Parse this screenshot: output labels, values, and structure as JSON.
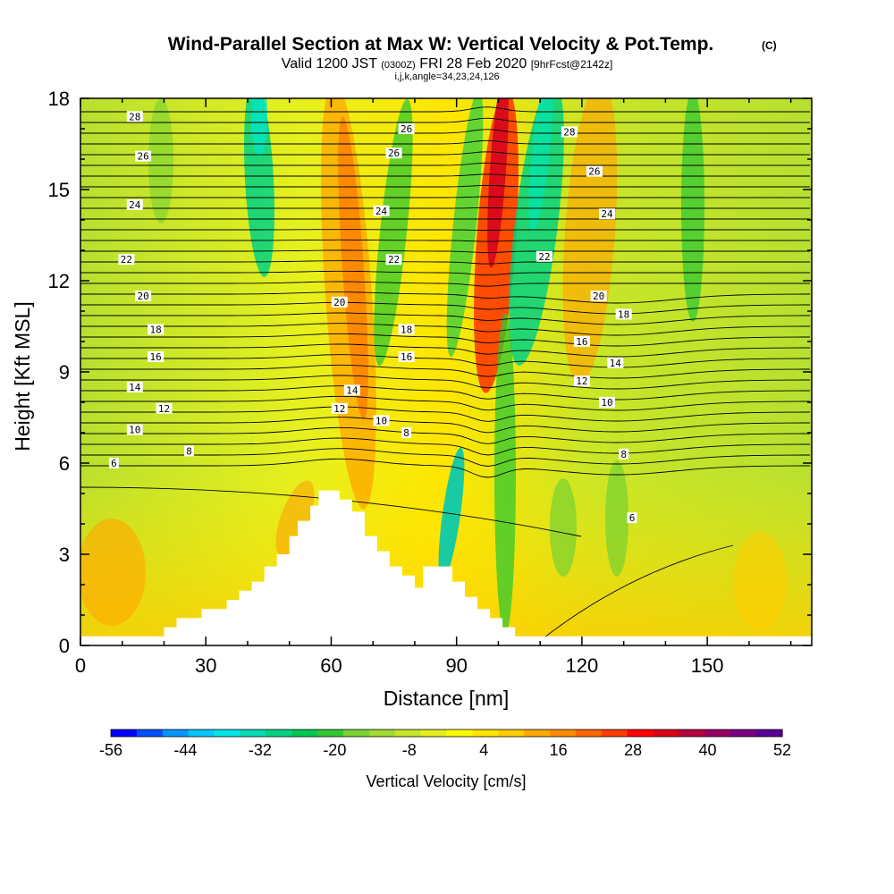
{
  "title": {
    "main": "Wind-Parallel Section at Max W: Vertical Velocity & Pot.Temp.",
    "copyright": "(C)",
    "valid_prefix": "Valid 1200 JST",
    "valid_utc": "(0300Z)",
    "valid_date": "FRI 28 Feb 2020",
    "forecast": "[9hrFcst@2142z]",
    "params": "i,j,k,angle=34,23,24,126"
  },
  "chart_data": {
    "type": "heatmap",
    "title": "Wind-Parallel Section at Max W: Vertical Velocity & Pot.Temp.",
    "xlabel": "Distance [nm]",
    "ylabel": "Height [Kft MSL]",
    "xlim": [
      0,
      175
    ],
    "ylim": [
      0,
      18
    ],
    "x_ticks": [
      "0",
      "30",
      "60",
      "90",
      "120",
      "150"
    ],
    "y_ticks": [
      "0",
      "3",
      "6",
      "9",
      "12",
      "15",
      "18"
    ],
    "colorbar": {
      "label": "Vertical Velocity [cm/s]",
      "range": [
        -56,
        52
      ],
      "tick_labels": [
        "-56",
        "-44",
        "-32",
        "-20",
        "-8",
        "4",
        "16",
        "28",
        "40",
        "52"
      ],
      "colors": [
        "#0000ff",
        "#0050ff",
        "#0096ff",
        "#00c8ff",
        "#00e6e6",
        "#00dcb4",
        "#00d282",
        "#00c850",
        "#32c832",
        "#78d232",
        "#a0dc32",
        "#c8e628",
        "#e6f01e",
        "#ffff00",
        "#ffe600",
        "#ffcd00",
        "#ffaa00",
        "#ff8c00",
        "#ff6400",
        "#ff3c00",
        "#ff0000",
        "#dc0014",
        "#b4003c",
        "#960064",
        "#780082",
        "#5a0096"
      ]
    },
    "isentrope_labels": [
      {
        "text": "28",
        "x": 13,
        "y": 17.4
      },
      {
        "text": "26",
        "x": 15,
        "y": 16.1
      },
      {
        "text": "24",
        "x": 13,
        "y": 14.5
      },
      {
        "text": "22",
        "x": 11,
        "y": 12.7
      },
      {
        "text": "20",
        "x": 15,
        "y": 11.5
      },
      {
        "text": "18",
        "x": 18,
        "y": 10.4
      },
      {
        "text": "16",
        "x": 18,
        "y": 9.5
      },
      {
        "text": "14",
        "x": 13,
        "y": 8.5
      },
      {
        "text": "12",
        "x": 20,
        "y": 7.8
      },
      {
        "text": "10",
        "x": 13,
        "y": 7.1
      },
      {
        "text": "8",
        "x": 26,
        "y": 6.4
      },
      {
        "text": "6",
        "x": 8,
        "y": 6.0
      },
      {
        "text": "26",
        "x": 78,
        "y": 17.0
      },
      {
        "text": "26",
        "x": 75,
        "y": 16.2
      },
      {
        "text": "24",
        "x": 72,
        "y": 14.3
      },
      {
        "text": "22",
        "x": 75,
        "y": 12.7
      },
      {
        "text": "20",
        "x": 62,
        "y": 11.3
      },
      {
        "text": "18",
        "x": 78,
        "y": 10.4
      },
      {
        "text": "16",
        "x": 78,
        "y": 9.5
      },
      {
        "text": "14",
        "x": 65,
        "y": 8.4
      },
      {
        "text": "12",
        "x": 62,
        "y": 7.8
      },
      {
        "text": "10",
        "x": 72,
        "y": 7.4
      },
      {
        "text": "8",
        "x": 78,
        "y": 7.0
      },
      {
        "text": "28",
        "x": 117,
        "y": 16.9
      },
      {
        "text": "26",
        "x": 123,
        "y": 15.6
      },
      {
        "text": "24",
        "x": 126,
        "y": 14.2
      },
      {
        "text": "22",
        "x": 111,
        "y": 12.8
      },
      {
        "text": "20",
        "x": 124,
        "y": 11.5
      },
      {
        "text": "18",
        "x": 130,
        "y": 10.9
      },
      {
        "text": "16",
        "x": 120,
        "y": 10.0
      },
      {
        "text": "14",
        "x": 128,
        "y": 9.3
      },
      {
        "text": "12",
        "x": 120,
        "y": 8.7
      },
      {
        "text": "10",
        "x": 126,
        "y": 8.0
      },
      {
        "text": "8",
        "x": 130,
        "y": 6.3
      },
      {
        "text": "6",
        "x": 132,
        "y": 4.2
      }
    ],
    "terrain_profile": [
      [
        0,
        0.3
      ],
      [
        10,
        0.3
      ],
      [
        19,
        0.3
      ],
      [
        20,
        0.6
      ],
      [
        23,
        0.9
      ],
      [
        29,
        1.2
      ],
      [
        35,
        1.5
      ],
      [
        38,
        1.8
      ],
      [
        41,
        2.1
      ],
      [
        44,
        2.6
      ],
      [
        47,
        3.0
      ],
      [
        50,
        3.6
      ],
      [
        52,
        4.1
      ],
      [
        55,
        4.6
      ],
      [
        57,
        5.1
      ],
      [
        60,
        5.1
      ],
      [
        62,
        4.8
      ],
      [
        65,
        4.4
      ],
      [
        68,
        3.6
      ],
      [
        71,
        3.1
      ],
      [
        74,
        2.6
      ],
      [
        77,
        2.3
      ],
      [
        80,
        1.9
      ],
      [
        82,
        2.6
      ],
      [
        86,
        2.6
      ],
      [
        89,
        2.1
      ],
      [
        92,
        1.6
      ],
      [
        95,
        1.2
      ],
      [
        98,
        0.9
      ],
      [
        101,
        0.6
      ],
      [
        104,
        0.3
      ],
      [
        175,
        0.3
      ]
    ]
  }
}
